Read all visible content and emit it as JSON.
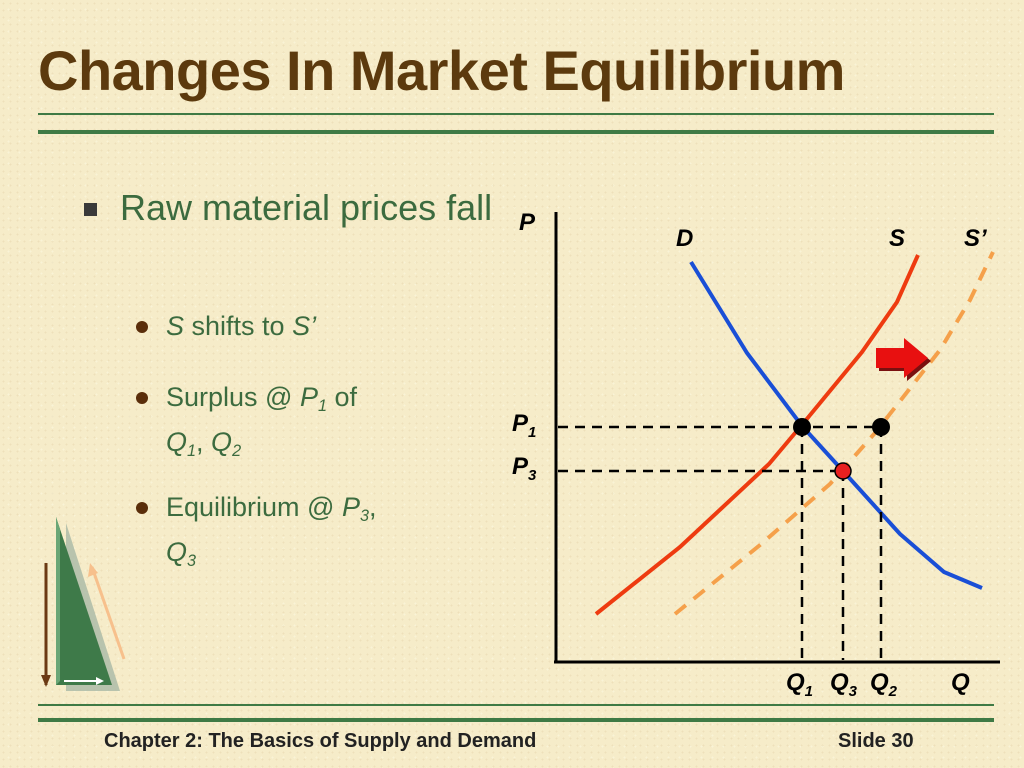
{
  "title": "Changes In Market Equilibrium",
  "bullet_main": "Raw material prices fall",
  "sub1": {
    "s": "S",
    "shifts": " shifts to ",
    "s_prime": "S’"
  },
  "sub2": {
    "prefix": "Surplus @ ",
    "p": "P",
    "p_sub": "1",
    "of": " of",
    "q1": "Q",
    "q1_sub": "1",
    "comma": ", ",
    "q2": "Q",
    "q2_sub": "2"
  },
  "sub3": {
    "prefix": "Equilibrium @ ",
    "p": "P",
    "p_sub": "3",
    "comma": ",",
    "q": "Q",
    "q_sub": "3"
  },
  "footer": {
    "left": "Chapter 2: The Basics of Supply and Demand",
    "right": "Slide 30"
  },
  "diagram": {
    "axis_p": "P",
    "axis_q": "Q",
    "curve_d": "D",
    "curve_s": "S",
    "curve_s_prime": "S’",
    "p1": "P",
    "p1_sub": "1",
    "p3": "P",
    "p3_sub": "3",
    "q1": "Q",
    "q1_sub": "1",
    "q3": "Q",
    "q3_sub": "3",
    "q2": "Q",
    "q2_sub": "2",
    "colors": {
      "demand": "#1a4fd6",
      "supply": "#ee3b10",
      "supply_shifted": "#f5a04a",
      "arrow": "#e81010",
      "new_eq": "#e82020"
    }
  }
}
